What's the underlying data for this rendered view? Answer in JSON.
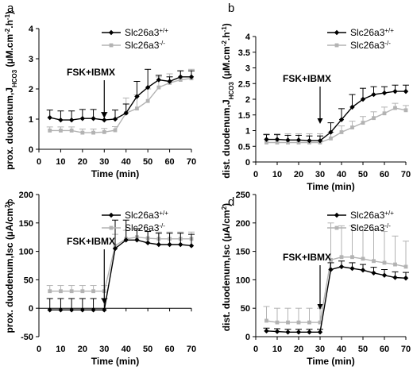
{
  "chart_data": [
    {
      "type": "line",
      "panel": "a",
      "xlabel": "Time (min)",
      "ylabel": "prox. duodenum,J",
      "ylabel_sub": "HCO3",
      "ylabel_unit": " (µM.cm",
      "ylabel_unit_sup1": "-2",
      "ylabel_unit_mid": ".h",
      "ylabel_unit_sup2": "-1",
      "ylabel_unit_end": ")",
      "xlim": [
        0,
        70
      ],
      "ylim": [
        0,
        4
      ],
      "xticks": [
        0,
        10,
        20,
        30,
        40,
        50,
        60,
        70
      ],
      "yticks": [
        0,
        1,
        2,
        3,
        4
      ],
      "annotation": {
        "text": "FSK+IBMX",
        "x": 30
      },
      "legend_position": "top-right",
      "x": [
        5,
        10,
        15,
        20,
        25,
        30,
        35,
        40,
        45,
        50,
        55,
        60,
        65,
        70
      ],
      "series": [
        {
          "name": "Slc26a3",
          "sup": "+/+",
          "color": "#000000",
          "marker": "diamond",
          "values": [
            1.05,
            0.97,
            0.97,
            1.02,
            1.02,
            0.97,
            1.0,
            1.2,
            1.75,
            2.05,
            2.3,
            2.25,
            2.4,
            2.4
          ],
          "errors": [
            0.25,
            0.3,
            0.3,
            0.3,
            0.3,
            0.25,
            0.3,
            0.3,
            0.5,
            0.6,
            0.15,
            0.15,
            0.2,
            0.2
          ]
        },
        {
          "name": "Slc26a3",
          "sup": "-/-",
          "color": "#b3b3b3",
          "marker": "square",
          "values": [
            0.62,
            0.62,
            0.62,
            0.55,
            0.55,
            0.57,
            0.63,
            1.2,
            1.35,
            1.6,
            2.05,
            2.2,
            2.3,
            2.35
          ],
          "errors": [
            0.12,
            0.12,
            0.12,
            0.12,
            0.12,
            0.12,
            0.12,
            0.5,
            0.45,
            0.4,
            0.35,
            0.3,
            0.3,
            0.3
          ]
        }
      ]
    },
    {
      "type": "line",
      "panel": "b",
      "xlabel": "Time (min)",
      "ylabel": "dist. duodenum,J",
      "ylabel_sub": "HCO3",
      "ylabel_unit": " (µM.cm",
      "ylabel_unit_sup1": "-2",
      "ylabel_unit_mid": ".h",
      "ylabel_unit_sup2": "-1",
      "ylabel_unit_end": ")",
      "xlim": [
        0,
        70
      ],
      "ylim": [
        0,
        4
      ],
      "xticks": [
        0,
        10,
        20,
        30,
        40,
        50,
        60,
        70
      ],
      "yticks": [
        0,
        0.5,
        1,
        1.5,
        2,
        2.5,
        3,
        3.5,
        4
      ],
      "annotation": {
        "text": "FSK+IBMX",
        "x": 30
      },
      "legend_position": "top-right",
      "x": [
        5,
        10,
        15,
        20,
        25,
        30,
        35,
        40,
        45,
        50,
        55,
        60,
        65,
        70
      ],
      "series": [
        {
          "name": "Slc26a3",
          "sup": "+/+",
          "color": "#000000",
          "marker": "diamond",
          "values": [
            0.72,
            0.72,
            0.7,
            0.7,
            0.68,
            0.68,
            0.95,
            1.35,
            1.75,
            2.0,
            2.15,
            2.2,
            2.25,
            2.25
          ],
          "errors": [
            0.15,
            0.15,
            0.15,
            0.15,
            0.15,
            0.15,
            0.3,
            0.35,
            0.4,
            0.35,
            0.25,
            0.2,
            0.2,
            0.2
          ]
        },
        {
          "name": "Slc26a3",
          "sup": "-/-",
          "color": "#b3b3b3",
          "marker": "square",
          "values": [
            0.62,
            0.62,
            0.62,
            0.62,
            0.62,
            0.62,
            0.75,
            0.95,
            1.1,
            1.25,
            1.4,
            1.55,
            1.72,
            1.65
          ],
          "errors": [
            0.28,
            0.28,
            0.28,
            0.28,
            0.28,
            0.28,
            0.2,
            0.2,
            0.2,
            0.2,
            0.2,
            0.2,
            0.15,
            0.15
          ]
        }
      ]
    },
    {
      "type": "line",
      "panel": "c",
      "xlabel": "Time (min)",
      "ylabel": "prox. duodenum,Isc (µA/cm",
      "ylabel_sup": "2",
      "ylabel_end": ")",
      "xlim": [
        0,
        70
      ],
      "ylim": [
        -50,
        200
      ],
      "xticks": [
        0,
        10,
        20,
        30,
        40,
        50,
        60,
        70
      ],
      "yticks": [
        -50,
        0,
        50,
        100,
        150,
        200
      ],
      "annotation": {
        "text": "FSK+IBMX",
        "x": 30
      },
      "legend_position": "top-right",
      "x": [
        5,
        10,
        15,
        20,
        25,
        30,
        35,
        40,
        45,
        50,
        55,
        60,
        65,
        70
      ],
      "series": [
        {
          "name": "Slc26a3",
          "sup": "+/+",
          "color": "#000000",
          "marker": "diamond",
          "values": [
            -3,
            -3,
            -3,
            -3,
            -3,
            -3,
            105,
            120,
            120,
            115,
            112,
            112,
            112,
            110
          ],
          "errors": [
            20,
            20,
            20,
            20,
            20,
            20,
            50,
            35,
            20,
            20,
            20,
            20,
            20,
            20
          ]
        },
        {
          "name": "Slc26a3",
          "sup": "-/-",
          "color": "#b3b3b3",
          "marker": "square",
          "values": [
            30,
            30,
            30,
            30,
            30,
            30,
            110,
            122,
            125,
            123,
            122,
            122,
            122,
            122
          ],
          "errors": [
            10,
            10,
            10,
            10,
            10,
            10,
            20,
            15,
            12,
            12,
            12,
            12,
            12,
            12
          ]
        }
      ]
    },
    {
      "type": "line",
      "panel": "d",
      "xlabel": "Time (min)",
      "ylabel": "dist. duodenum,Isc (µA/cm",
      "ylabel_sup": "2",
      "ylabel_end": ")",
      "xlim": [
        0,
        70
      ],
      "ylim": [
        0,
        250
      ],
      "xticks": [
        0,
        10,
        20,
        30,
        40,
        50,
        60,
        70
      ],
      "yticks": [
        0,
        50,
        100,
        150,
        200,
        250
      ],
      "annotation": {
        "text": "FSK+IBMX",
        "x": 30
      },
      "legend_position": "top-right",
      "x": [
        5,
        10,
        15,
        20,
        25,
        30,
        35,
        40,
        45,
        50,
        55,
        60,
        65,
        70
      ],
      "series": [
        {
          "name": "Slc26a3",
          "sup": "+/+",
          "color": "#000000",
          "marker": "diamond",
          "values": [
            10,
            9,
            8,
            8,
            8,
            8,
            118,
            123,
            120,
            117,
            112,
            108,
            104,
            103
          ],
          "errors": [
            5,
            5,
            5,
            5,
            5,
            5,
            12,
            10,
            10,
            10,
            10,
            10,
            10,
            10
          ]
        },
        {
          "name": "Slc26a3",
          "sup": "-/-",
          "color": "#b3b3b3",
          "marker": "square",
          "values": [
            28,
            25,
            25,
            25,
            25,
            25,
            135,
            140,
            140,
            137,
            133,
            130,
            127,
            123
          ],
          "errors": [
            25,
            25,
            25,
            25,
            25,
            25,
            65,
            55,
            55,
            55,
            55,
            55,
            50,
            45
          ]
        }
      ]
    }
  ]
}
